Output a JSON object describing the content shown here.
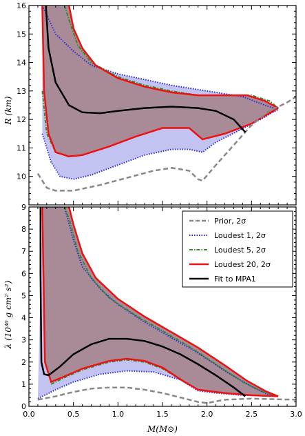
{
  "chart_data": [
    {
      "type": "area",
      "panel": "top",
      "xlabel": "",
      "ylabel": "R (km)",
      "xlim": [
        0.0,
        3.0
      ],
      "ylim": [
        9.0,
        16.0
      ],
      "yticks": [
        "10",
        "11",
        "12",
        "13",
        "14",
        "15",
        "16"
      ],
      "colors": {
        "prior": "#888888",
        "loudest1_fill": "#b8b8f0",
        "loudest1_edge": "#2a2ad8",
        "loudest5_edge": "#2e8b2e",
        "loudest20_fill": "#a98b98",
        "loudest20_edge": "#ee1111",
        "fit": "#000000"
      },
      "series": [
        {
          "name": "Prior, 2σ",
          "style": "dashed",
          "lower": [
            [
              0.1,
              10.1
            ],
            [
              0.2,
              9.6
            ],
            [
              0.3,
              9.5
            ],
            [
              0.5,
              9.5
            ],
            [
              0.8,
              9.7
            ],
            [
              1.1,
              9.95
            ],
            [
              1.4,
              10.2
            ],
            [
              1.6,
              10.3
            ],
            [
              1.8,
              10.2
            ],
            [
              1.9,
              9.9
            ],
            [
              1.95,
              9.85
            ],
            [
              2.1,
              10.4
            ],
            [
              2.3,
              11.1
            ],
            [
              2.5,
              11.8
            ],
            [
              2.7,
              12.3
            ],
            [
              2.9,
              12.6
            ],
            [
              3.0,
              12.8
            ]
          ]
        },
        {
          "name": "Loudest 1, 2σ",
          "upper": [
            [
              0.15,
              16.0
            ],
            [
              0.3,
              15.0
            ],
            [
              0.5,
              14.4
            ],
            [
              0.7,
              13.9
            ],
            [
              1.0,
              13.6
            ],
            [
              1.3,
              13.4
            ],
            [
              1.6,
              13.2
            ],
            [
              1.9,
              13.05
            ],
            [
              2.1,
              12.95
            ],
            [
              2.4,
              12.8
            ],
            [
              2.65,
              12.5
            ],
            [
              2.8,
              12.35
            ]
          ],
          "lower": [
            [
              0.15,
              11.5
            ],
            [
              0.25,
              10.5
            ],
            [
              0.35,
              10.0
            ],
            [
              0.5,
              9.9
            ],
            [
              0.7,
              10.05
            ],
            [
              1.0,
              10.4
            ],
            [
              1.3,
              10.75
            ],
            [
              1.6,
              10.95
            ],
            [
              1.8,
              10.95
            ],
            [
              1.95,
              10.85
            ],
            [
              2.1,
              11.2
            ],
            [
              2.35,
              11.6
            ],
            [
              2.6,
              12.0
            ],
            [
              2.8,
              12.35
            ]
          ]
        },
        {
          "name": "Loudest 5, 2σ",
          "upper": [
            [
              0.4,
              16.0
            ],
            [
              0.45,
              15.5
            ],
            [
              0.55,
              14.6
            ],
            [
              0.7,
              14.0
            ],
            [
              1.0,
              13.5
            ],
            [
              1.3,
              13.2
            ],
            [
              1.6,
              13.0
            ],
            [
              1.9,
              12.85
            ],
            [
              2.2,
              12.85
            ],
            [
              2.5,
              12.85
            ],
            [
              2.7,
              12.65
            ],
            [
              2.8,
              12.4
            ]
          ],
          "lower": [
            [
              0.15,
              13.0
            ],
            [
              0.2,
              11.5
            ],
            [
              0.3,
              10.85
            ],
            [
              0.45,
              10.7
            ],
            [
              0.6,
              10.75
            ],
            [
              0.9,
              11.05
            ],
            [
              1.2,
              11.4
            ],
            [
              1.5,
              11.7
            ],
            [
              1.8,
              11.7
            ],
            [
              1.95,
              11.3
            ],
            [
              2.2,
              11.5
            ],
            [
              2.5,
              11.85
            ],
            [
              2.8,
              12.4
            ]
          ]
        },
        {
          "name": "Loudest 20, 2σ",
          "upper": [
            [
              0.45,
              16.0
            ],
            [
              0.5,
              15.2
            ],
            [
              0.6,
              14.5
            ],
            [
              0.75,
              13.9
            ],
            [
              1.0,
              13.45
            ],
            [
              1.3,
              13.15
            ],
            [
              1.6,
              12.95
            ],
            [
              1.9,
              12.85
            ],
            [
              2.2,
              12.85
            ],
            [
              2.45,
              12.85
            ],
            [
              2.65,
              12.65
            ],
            [
              2.8,
              12.4
            ]
          ],
          "lower": [
            [
              0.15,
              16.0
            ],
            [
              0.17,
              13.0
            ],
            [
              0.22,
              11.5
            ],
            [
              0.3,
              10.85
            ],
            [
              0.45,
              10.7
            ],
            [
              0.6,
              10.75
            ],
            [
              0.9,
              11.05
            ],
            [
              1.2,
              11.4
            ],
            [
              1.5,
              11.7
            ],
            [
              1.8,
              11.7
            ],
            [
              1.95,
              11.3
            ],
            [
              2.2,
              11.5
            ],
            [
              2.5,
              11.85
            ],
            [
              2.8,
              12.4
            ]
          ]
        },
        {
          "name": "Fit to MPA1",
          "line": [
            [
              0.19,
              16.0
            ],
            [
              0.22,
              14.5
            ],
            [
              0.3,
              13.3
            ],
            [
              0.45,
              12.5
            ],
            [
              0.6,
              12.25
            ],
            [
              0.8,
              12.22
            ],
            [
              1.0,
              12.3
            ],
            [
              1.3,
              12.4
            ],
            [
              1.6,
              12.45
            ],
            [
              1.9,
              12.4
            ],
            [
              2.1,
              12.3
            ],
            [
              2.3,
              12.0
            ],
            [
              2.43,
              11.55
            ]
          ]
        }
      ]
    },
    {
      "type": "area",
      "panel": "bottom",
      "xlabel": "M(M⊙)",
      "ylabel": "λ (10³⁶ g cm² s²)",
      "xlim": [
        0.0,
        3.0
      ],
      "ylim": [
        0.0,
        9.0
      ],
      "xticks": [
        "0.0",
        "0.5",
        "1.0",
        "1.5",
        "2.0",
        "2.5",
        "3.0"
      ],
      "yticks": [
        "0",
        "1",
        "2",
        "3",
        "4",
        "5",
        "6",
        "7",
        "8",
        "9"
      ],
      "legend": {
        "position": "top-right",
        "entries": [
          "Prior, 2σ",
          "Loudest 1, 2σ",
          "Loudest 5, 2σ",
          "Loudest 20, 2σ",
          "Fit to MPA1"
        ]
      },
      "series": [
        {
          "name": "Prior, 2σ",
          "style": "dashed",
          "lower": [
            [
              0.1,
              0.3
            ],
            [
              0.3,
              0.45
            ],
            [
              0.5,
              0.65
            ],
            [
              0.7,
              0.8
            ],
            [
              0.9,
              0.85
            ],
            [
              1.1,
              0.85
            ],
            [
              1.3,
              0.75
            ],
            [
              1.5,
              0.6
            ],
            [
              1.7,
              0.4
            ],
            [
              1.9,
              0.2
            ],
            [
              2.0,
              0.15
            ],
            [
              2.2,
              0.3
            ],
            [
              2.5,
              0.35
            ],
            [
              3.0,
              0.3
            ]
          ]
        },
        {
          "name": "Loudest 1, 2σ",
          "upper": [
            [
              0.15,
              9.0
            ],
            [
              0.4,
              9.0
            ],
            [
              0.5,
              7.5
            ],
            [
              0.6,
              6.3
            ],
            [
              0.8,
              5.3
            ],
            [
              1.0,
              4.6
            ],
            [
              1.3,
              3.8
            ],
            [
              1.6,
              3.1
            ],
            [
              1.9,
              2.4
            ],
            [
              2.2,
              1.6
            ],
            [
              2.5,
              0.9
            ],
            [
              2.7,
              0.5
            ],
            [
              2.8,
              0.45
            ]
          ],
          "lower": [
            [
              0.1,
              0.35
            ],
            [
              0.2,
              0.55
            ],
            [
              0.3,
              0.75
            ],
            [
              0.5,
              1.1
            ],
            [
              0.8,
              1.45
            ],
            [
              1.1,
              1.6
            ],
            [
              1.4,
              1.55
            ],
            [
              1.7,
              1.2
            ],
            [
              1.9,
              0.7
            ],
            [
              2.1,
              0.6
            ],
            [
              2.4,
              0.5
            ],
            [
              2.8,
              0.45
            ]
          ]
        },
        {
          "name": "Loudest 5, 2σ",
          "upper": [
            [
              0.4,
              9.0
            ],
            [
              0.45,
              8.5
            ],
            [
              0.55,
              7.0
            ],
            [
              0.7,
              5.8
            ],
            [
              0.9,
              4.9
            ],
            [
              1.2,
              4.1
            ],
            [
              1.5,
              3.4
            ],
            [
              1.8,
              2.7
            ],
            [
              2.1,
              1.9
            ],
            [
              2.4,
              1.1
            ],
            [
              2.6,
              0.7
            ],
            [
              2.8,
              0.45
            ]
          ],
          "lower": [
            [
              0.25,
              1.0
            ],
            [
              0.4,
              1.3
            ],
            [
              0.6,
              1.65
            ],
            [
              0.9,
              2.0
            ],
            [
              1.1,
              2.1
            ],
            [
              1.3,
              2.0
            ],
            [
              1.5,
              1.7
            ],
            [
              1.75,
              1.1
            ],
            [
              1.9,
              0.75
            ],
            [
              2.2,
              0.6
            ],
            [
              2.5,
              0.5
            ],
            [
              2.8,
              0.45
            ]
          ]
        },
        {
          "name": "Loudest 20, 2σ",
          "upper": [
            [
              0.45,
              9.0
            ],
            [
              0.5,
              8.2
            ],
            [
              0.6,
              6.9
            ],
            [
              0.75,
              5.8
            ],
            [
              1.0,
              4.85
            ],
            [
              1.3,
              4.05
            ],
            [
              1.6,
              3.35
            ],
            [
              1.9,
              2.65
            ],
            [
              2.2,
              1.85
            ],
            [
              2.45,
              1.15
            ],
            [
              2.65,
              0.7
            ],
            [
              2.8,
              0.45
            ]
          ],
          "lower": [
            [
              0.15,
              9.0
            ],
            [
              0.18,
              2.0
            ],
            [
              0.25,
              1.1
            ],
            [
              0.4,
              1.35
            ],
            [
              0.6,
              1.7
            ],
            [
              0.9,
              2.05
            ],
            [
              1.1,
              2.15
            ],
            [
              1.3,
              2.05
            ],
            [
              1.5,
              1.75
            ],
            [
              1.75,
              1.1
            ],
            [
              1.9,
              0.75
            ],
            [
              2.2,
              0.6
            ],
            [
              2.5,
              0.5
            ],
            [
              2.8,
              0.45
            ]
          ]
        },
        {
          "name": "Fit to MPA1",
          "line": [
            [
              0.13,
              9.0
            ],
            [
              0.13,
              6.0
            ],
            [
              0.14,
              2.0
            ],
            [
              0.17,
              1.45
            ],
            [
              0.22,
              1.4
            ],
            [
              0.35,
              1.8
            ],
            [
              0.5,
              2.35
            ],
            [
              0.7,
              2.8
            ],
            [
              0.9,
              3.05
            ],
            [
              1.1,
              3.05
            ],
            [
              1.3,
              2.95
            ],
            [
              1.5,
              2.7
            ],
            [
              1.7,
              2.35
            ],
            [
              1.9,
              1.9
            ],
            [
              2.1,
              1.4
            ],
            [
              2.3,
              0.85
            ],
            [
              2.43,
              0.45
            ]
          ]
        }
      ]
    }
  ]
}
